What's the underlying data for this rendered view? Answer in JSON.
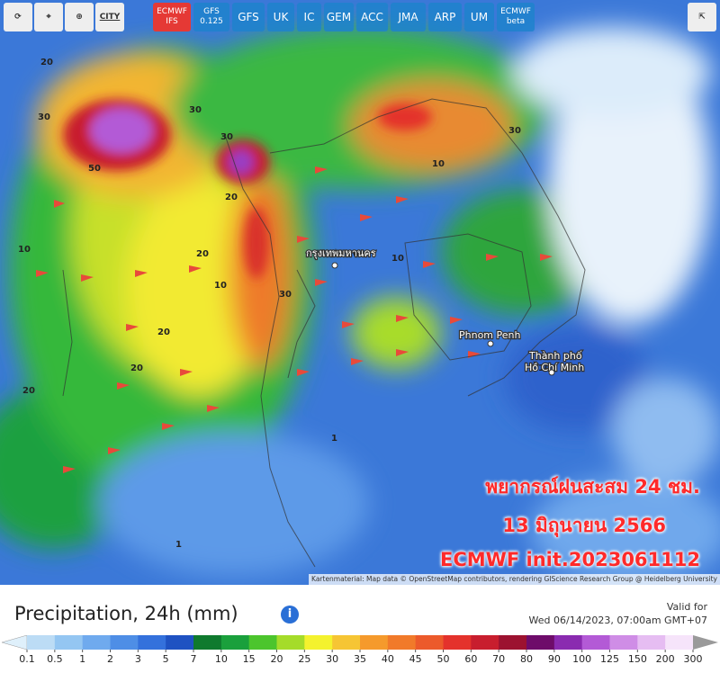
{
  "top_bar": {
    "tools": [
      "CITY"
    ],
    "models": [
      [
        "ECMWF",
        "IFS"
      ],
      [
        "GFS",
        "0.125"
      ],
      [
        "GFS"
      ],
      [
        "UK"
      ],
      [
        "IC"
      ],
      [
        "GEM"
      ],
      [
        "ACC"
      ],
      [
        "JMA"
      ],
      [
        "ARP"
      ],
      [
        "UM"
      ],
      [
        "ECMWF",
        "beta"
      ]
    ]
  },
  "map": {
    "places": [
      "กรุงเทพมหานคร",
      "Phnom Penh",
      "Thành phố",
      "Hồ Chí Minh"
    ],
    "contours": [
      "20",
      "30",
      "50",
      "10",
      "30",
      "20",
      "10",
      "30",
      "10",
      "20",
      "20",
      "20",
      "30",
      "10",
      "1",
      "1",
      "10",
      "20",
      "30",
      "10"
    ],
    "overlay": [
      "พยากรณ์ฝนสะสม 24 ชม.",
      "13 มิถุนายน 2566",
      "ECMWF init.2023061112"
    ],
    "attribution": "Kartenmaterial: Map data © OpenStreetMap contributors, rendering GIScience Research Group @ Heidelberg University"
  },
  "panel": {
    "title": "Precipitation, 24h (mm)",
    "valid_label": "Valid for",
    "valid_time": "Wed 06/14/2023, 07:00am GMT+07"
  },
  "legend": {
    "below_color": "#dff0fb",
    "stops": [
      {
        "label": "0.1",
        "color": "#bcdcf5"
      },
      {
        "label": "0.5",
        "color": "#94c6f2"
      },
      {
        "label": "1",
        "color": "#6faaee"
      },
      {
        "label": "2",
        "color": "#4e8ee6"
      },
      {
        "label": "3",
        "color": "#3471dc"
      },
      {
        "label": "5",
        "color": "#1f52c2"
      },
      {
        "label": "7",
        "color": "#0f7a2e"
      },
      {
        "label": "10",
        "color": "#1aa03c"
      },
      {
        "label": "15",
        "color": "#4cc52d"
      },
      {
        "label": "20",
        "color": "#a5dc2a"
      },
      {
        "label": "25",
        "color": "#f4f22e"
      },
      {
        "label": "30",
        "color": "#f6c534"
      },
      {
        "label": "35",
        "color": "#f59a2c"
      },
      {
        "label": "40",
        "color": "#f17a2a"
      },
      {
        "label": "45",
        "color": "#ec5a2b"
      },
      {
        "label": "50",
        "color": "#e4322c"
      },
      {
        "label": "60",
        "color": "#c81e2e"
      },
      {
        "label": "70",
        "color": "#9c1230"
      },
      {
        "label": "80",
        "color": "#6e0c6a"
      },
      {
        "label": "90",
        "color": "#8a2bb0"
      },
      {
        "label": "100",
        "color": "#b35ad6"
      },
      {
        "label": "125",
        "color": "#cf8de6"
      },
      {
        "label": "150",
        "color": "#e6bdf2"
      },
      {
        "label": "200",
        "color": "#f6e4fa"
      },
      {
        "label": "300",
        "color": "#9a9a9a"
      }
    ]
  }
}
